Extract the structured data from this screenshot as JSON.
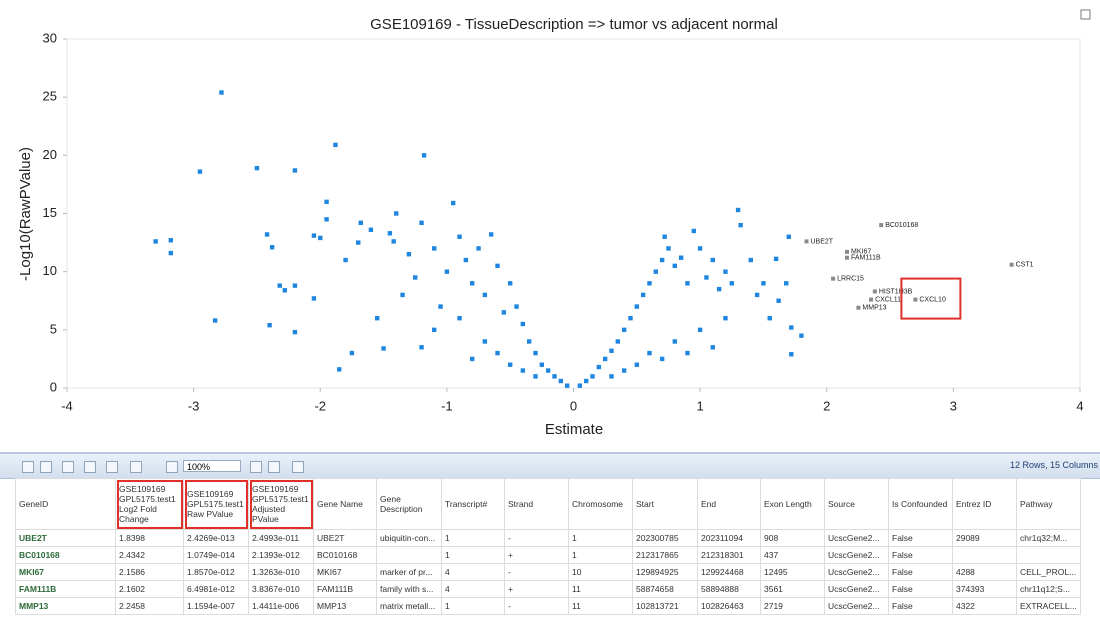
{
  "chart_data": {
    "type": "scatter",
    "title": "GSE109169 - TissueDescription => tumor vs adjacent normal",
    "x_label": "Estimate",
    "y_label": "-Log10(RawPValue)",
    "xlim": [
      -4,
      4
    ],
    "ylim": [
      0,
      30
    ],
    "xticks": [
      -4,
      -3,
      -2,
      -1,
      0,
      1,
      2,
      3,
      4
    ],
    "yticks": [
      0,
      5,
      10,
      15,
      20,
      25,
      30
    ],
    "grid": false,
    "color": "#1f86e0",
    "annotation_color": "#8a8a8a",
    "x": [
      -3.3,
      -3.18,
      -3.18,
      -2.95,
      -2.78,
      -2.83,
      -2.5,
      -2.4,
      -2.42,
      -2.38,
      -2.32,
      -2.28,
      -2.2,
      -2.2,
      -2.2,
      -2.05,
      -2.05,
      -2.0,
      -1.95,
      -1.95,
      -1.88,
      -1.85,
      -1.8,
      -1.75,
      -1.7,
      -1.68,
      -1.6,
      -1.55,
      -1.5,
      -1.45,
      -1.42,
      -1.4,
      -1.35,
      -1.3,
      -1.25,
      -1.2,
      -1.18,
      -1.1,
      -1.05,
      -1.0,
      -0.95,
      -0.9,
      -0.85,
      -0.8,
      -0.75,
      -0.7,
      -0.65,
      -0.6,
      -0.55,
      -0.5,
      -0.45,
      -0.4,
      -0.35,
      -0.3,
      -0.25,
      -0.2,
      -0.15,
      -0.1,
      -0.05,
      -0.7,
      -0.9,
      -1.1,
      -0.6,
      -0.5,
      -0.4,
      -0.3,
      -0.8,
      -1.2,
      0.05,
      0.1,
      0.15,
      0.2,
      0.25,
      0.3,
      0.35,
      0.4,
      0.45,
      0.5,
      0.55,
      0.6,
      0.65,
      0.7,
      0.72,
      0.75,
      0.8,
      0.85,
      0.9,
      0.95,
      1.0,
      1.05,
      1.1,
      1.15,
      1.2,
      1.25,
      1.3,
      1.32,
      1.4,
      1.45,
      1.5,
      1.55,
      1.6,
      1.62,
      1.68,
      1.7,
      1.72,
      1.72,
      1.8,
      0.6,
      0.8,
      1.0,
      1.2,
      0.5,
      0.4,
      0.3,
      0.9,
      1.1,
      0.7
    ],
    "values": [
      12.6,
      12.7,
      11.6,
      18.6,
      25.4,
      5.8,
      18.9,
      5.4,
      13.2,
      12.1,
      8.8,
      8.4,
      4.8,
      8.8,
      18.7,
      13.1,
      7.7,
      12.9,
      16.0,
      14.5,
      20.9,
      1.6,
      11.0,
      3.0,
      12.5,
      14.2,
      13.6,
      6.0,
      3.4,
      13.3,
      12.6,
      15.0,
      8.0,
      11.5,
      9.5,
      14.2,
      20.0,
      12.0,
      7.0,
      10.0,
      15.9,
      13.0,
      11.0,
      9.0,
      12.0,
      8.0,
      13.2,
      10.5,
      6.5,
      9.0,
      7.0,
      5.5,
      4.0,
      3.0,
      2.0,
      1.5,
      1.0,
      0.6,
      0.2,
      4,
      6,
      5,
      3,
      2,
      1.5,
      1,
      2.5,
      3.5,
      0.2,
      0.6,
      1.0,
      1.8,
      2.5,
      3.2,
      4,
      5,
      6,
      7,
      8,
      9,
      10,
      11,
      13.0,
      12,
      10.5,
      11.2,
      9,
      13.5,
      12,
      9.5,
      11,
      8.5,
      10,
      9,
      15.3,
      14,
      11,
      8,
      9,
      6,
      11.1,
      7.5,
      9,
      13.0,
      5.2,
      2.9,
      4.5,
      3,
      4,
      5,
      6,
      2,
      1.5,
      1,
      3,
      3.5,
      2.5
    ],
    "annotations": [
      {
        "text": "UBE2T",
        "x": 1.84,
        "y": 12.6
      },
      {
        "text": "BC010168",
        "x": 2.43,
        "y": 14.0
      },
      {
        "text": "MKI67",
        "x": 2.16,
        "y": 11.7
      },
      {
        "text": "FAM111B",
        "x": 2.16,
        "y": 11.2
      },
      {
        "text": "LRRC15",
        "x": 2.05,
        "y": 9.4
      },
      {
        "text": "HIST1H3B",
        "x": 2.38,
        "y": 8.3
      },
      {
        "text": "CXCL11",
        "x": 2.35,
        "y": 7.6
      },
      {
        "text": "CXCL10",
        "x": 2.7,
        "y": 7.6
      },
      {
        "text": "MMP13",
        "x": 2.25,
        "y": 6.9
      },
      {
        "text": "CST1",
        "x": 3.46,
        "y": 10.6
      }
    ]
  },
  "toolbar": {
    "zoom": "100%",
    "status": "12 Rows, 15 Columns"
  },
  "table": {
    "columns": [
      "GeneID",
      "GSE109169 GPL5175.test1 Log2 Fold Change",
      "GSE109169 GPL5175.test1 Raw PValue",
      "GSE109169 GPL5175.test1 Adjusted PValue",
      "Gene Name",
      "Gene Description",
      "Transcript#",
      "Strand",
      "Chromosome",
      "Start",
      "End",
      "Exon Length",
      "Source",
      "Is Confounded",
      "Entrez ID",
      "Pathway"
    ],
    "rows": [
      [
        "UBE2T",
        "1.8398",
        "2.4269e-013",
        "2.4993e-011",
        "UBE2T",
        "ubiquitin-con...",
        "1",
        "-",
        "1",
        "202300785",
        "202311094",
        "908",
        "UcscGene2...",
        "False",
        "29089",
        "chr1q32;M..."
      ],
      [
        "BC010168",
        "2.4342",
        "1.0749e-014",
        "2.1393e-012",
        "BC010168",
        null,
        "1",
        "+",
        "1",
        "212317865",
        "212318301",
        "437",
        "UcscGene2...",
        "False",
        null,
        null
      ],
      [
        "MKI67",
        "2.1586",
        "1.8570e-012",
        "1.3263e-010",
        "MKI67",
        "marker of pr...",
        "4",
        "-",
        "10",
        "129894925",
        "129924468",
        "12495",
        "UcscGene2...",
        "False",
        "4288",
        "CELL_PROL..."
      ],
      [
        "FAM111B",
        "2.1602",
        "6.4981e-012",
        "3.8367e-010",
        "FAM111B",
        "family with s...",
        "4",
        "+",
        "11",
        "58874658",
        "58894888",
        "3561",
        "UcscGene2...",
        "False",
        "374393",
        "chr11q12;S..."
      ],
      [
        "MMP13",
        "2.2458",
        "1.1594e-007",
        "1.4411e-006",
        "MMP13",
        "matrix metall...",
        "1",
        "-",
        "11",
        "102813721",
        "102826463",
        "2719",
        "UcscGene2...",
        "False",
        "4322",
        "EXTRACELL..."
      ]
    ]
  }
}
